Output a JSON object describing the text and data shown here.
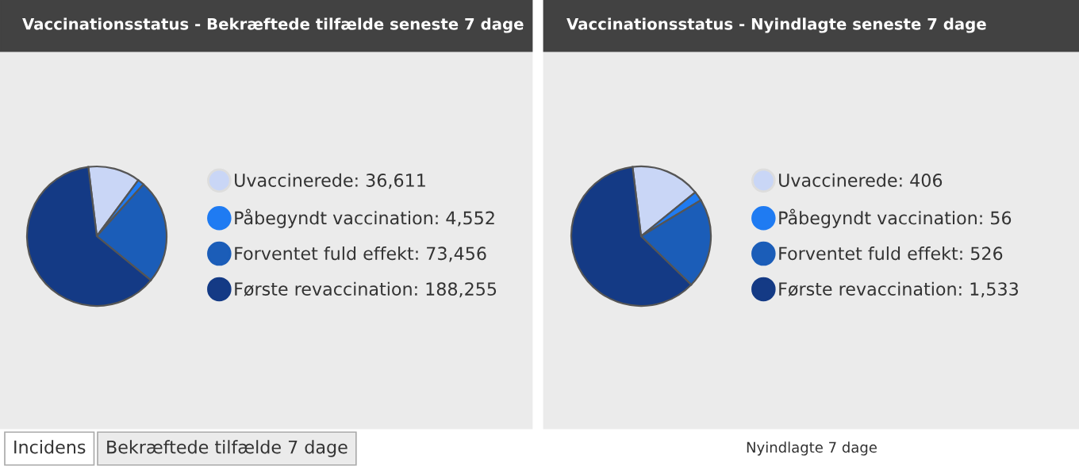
{
  "chart_data": [
    {
      "type": "pie",
      "title": "Vaccinationsstatus - Bekræftede tilfælde seneste 7 dage",
      "categories": [
        "Uvaccinerede",
        "Påbegyndt vaccination",
        "Forventet fuld effekt",
        "Første revaccination"
      ],
      "values": [
        36611,
        4552,
        73456,
        188255
      ],
      "value_labels": [
        "36,611",
        "4,552",
        "73,456",
        "188,255"
      ],
      "colors": [
        "#c9d6f6",
        "#1f7bf2",
        "#1b5db8",
        "#143a85"
      ],
      "legend": "right",
      "annotations": [
        "Incidens",
        "Bekræftede tilfælde 7 dage"
      ]
    },
    {
      "type": "pie",
      "title": "Vaccinationsstatus - Nyindlagte seneste 7 dage",
      "categories": [
        "Uvaccinerede",
        "Påbegyndt vaccination",
        "Forventet fuld effekt",
        "Første revaccination"
      ],
      "values": [
        406,
        56,
        526,
        1533
      ],
      "value_labels": [
        "406",
        "56",
        "526",
        "1,533"
      ],
      "colors": [
        "#c9d6f6",
        "#1f7bf2",
        "#1b5db8",
        "#143a85"
      ],
      "legend": "right",
      "annotations": [
        "Nyindlagte 7 dage"
      ]
    }
  ]
}
